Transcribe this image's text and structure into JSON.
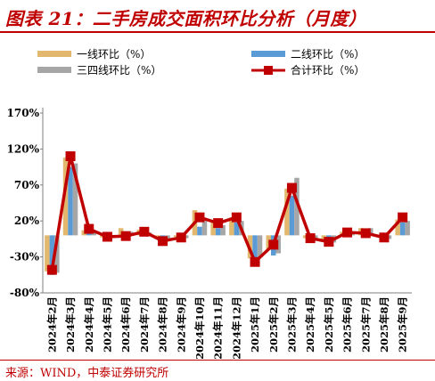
{
  "title": "图表 21：二手房成交面积环比分析（月度）",
  "source": "来源：WIND，中泰证券研究所",
  "colors": {
    "tier1": "#e2b76e",
    "tier2": "#5b9bd5",
    "tier34": "#a6a6a6",
    "total_line": "#c00000",
    "accent": "#c00000"
  },
  "chart_data": {
    "type": "bar",
    "categories": [
      "2024年2月",
      "2024年3月",
      "2024年4月",
      "2024年5月",
      "2024年6月",
      "2024年7月",
      "2024年8月",
      "2024年9月",
      "2024年10月",
      "2024年11月",
      "2024年12月",
      "2025年1月",
      "2025年2月",
      "2025年3月",
      "2025年4月",
      "2025年5月",
      "2025年6月",
      "2025年7月",
      "2025年8月",
      "2025年9月"
    ],
    "ylim": [
      -80,
      170
    ],
    "yticks": [
      -80,
      -30,
      20,
      70,
      120,
      170
    ],
    "ytick_labels": [
      "-80%",
      "-30%",
      "20%",
      "70%",
      "120%",
      "170%"
    ],
    "grid": false,
    "legend_position": "top",
    "series": [
      {
        "name": "一线环比（%）",
        "kind": "bar",
        "values": [
          -50,
          108,
          7,
          -3,
          10,
          8,
          -5,
          -2,
          35,
          20,
          25,
          -32,
          -20,
          65,
          -4,
          -8,
          5,
          10,
          -3,
          22
        ]
      },
      {
        "name": "二线环比（%）",
        "kind": "bar",
        "values": [
          -55,
          95,
          3,
          -6,
          0,
          2,
          -8,
          -6,
          12,
          10,
          18,
          -38,
          -28,
          55,
          -10,
          -12,
          -2,
          2,
          -8,
          18
        ]
      },
      {
        "name": "三四线环比（%）",
        "kind": "bar",
        "values": [
          -52,
          100,
          5,
          -4,
          5,
          4,
          -6,
          -4,
          20,
          14,
          20,
          -30,
          -25,
          80,
          -6,
          -10,
          2,
          10,
          -5,
          20
        ]
      },
      {
        "name": "合计环比（%）",
        "kind": "line",
        "values": [
          -48,
          110,
          9,
          -2,
          -1,
          5,
          -8,
          -3,
          25,
          17,
          25,
          -37,
          -13,
          66,
          -4,
          -9,
          4,
          3,
          -3,
          25
        ]
      }
    ]
  }
}
